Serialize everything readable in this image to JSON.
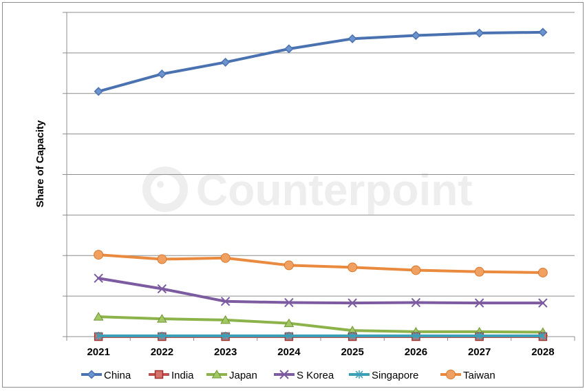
{
  "chart_data": {
    "type": "line",
    "title": "",
    "xlabel": "",
    "ylabel": "Share of Capacity",
    "categories": [
      "2021",
      "2022",
      "2023",
      "2024",
      "2025",
      "2026",
      "2027",
      "2028"
    ],
    "ylim": [
      0,
      80
    ],
    "gridlines": "horizontal",
    "y_tick_labels_shown": false,
    "legend_position": "bottom",
    "watermark": "Counterpoint",
    "series": [
      {
        "name": "China",
        "color": "#4a72b0",
        "marker": "diamond",
        "values": [
          60.5,
          64.8,
          67.7,
          71.0,
          73.5,
          74.3,
          74.9,
          75.1
        ]
      },
      {
        "name": "India",
        "color": "#c0504d",
        "marker": "square",
        "values": [
          0,
          0,
          0,
          0,
          0,
          0,
          0,
          0
        ]
      },
      {
        "name": "Japan",
        "color": "#8cb24a",
        "marker": "triangle",
        "values": [
          4.9,
          4.4,
          4.1,
          3.3,
          1.5,
          1.2,
          1.2,
          1.1
        ]
      },
      {
        "name": "S Korea",
        "color": "#7c5ba0",
        "marker": "x",
        "values": [
          14.4,
          11.8,
          8.7,
          8.4,
          8.3,
          8.4,
          8.3,
          8.3
        ]
      },
      {
        "name": "Singapore",
        "color": "#3aa0b8",
        "marker": "star",
        "values": [
          0.2,
          0.2,
          0.2,
          0.2,
          0.2,
          0.2,
          0.2,
          0.2
        ]
      },
      {
        "name": "Taiwan",
        "color": "#e98a3f",
        "marker": "circle",
        "values": [
          20.2,
          19.1,
          19.4,
          17.6,
          17.1,
          16.4,
          16.0,
          15.8
        ]
      }
    ]
  }
}
